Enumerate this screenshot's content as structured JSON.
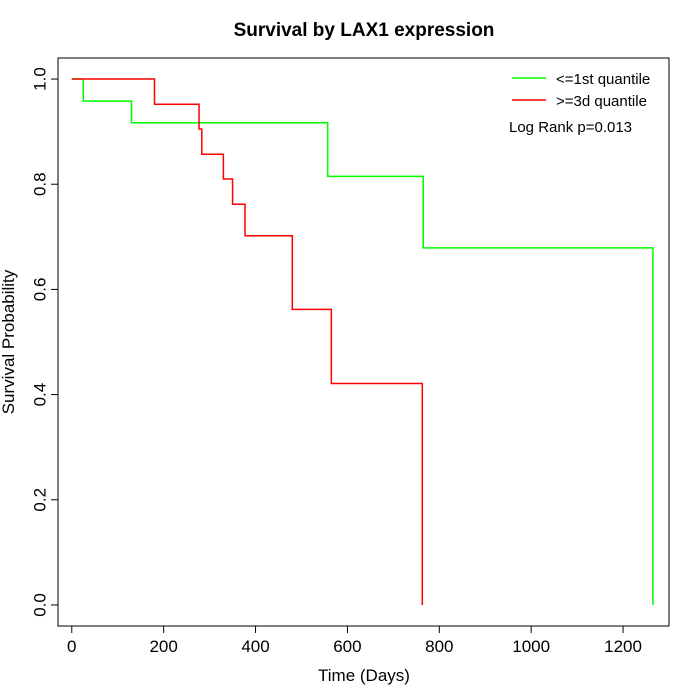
{
  "chart_data": {
    "type": "line",
    "title": "Survival by LAX1 expression",
    "xlabel": "Time (Days)",
    "ylabel": "Survival Probability",
    "xlim": [
      -30,
      1300
    ],
    "ylim": [
      -0.04,
      1.04
    ],
    "x_ticks": [
      0,
      200,
      400,
      600,
      800,
      1000,
      1200
    ],
    "y_ticks": [
      0.0,
      0.2,
      0.4,
      0.6,
      0.8,
      1.0
    ],
    "x_tick_labels": [
      "0",
      "200",
      "400",
      "600",
      "800",
      "1000",
      "1200"
    ],
    "y_tick_labels": [
      "0.0",
      "0.2",
      "0.4",
      "0.6",
      "0.8",
      "1.0"
    ],
    "grid": false,
    "legend_position": "top-right",
    "annotation": "Log Rank p=0.013",
    "series": [
      {
        "name": "<=1st quantile",
        "color": "#00ff00",
        "step": true,
        "x": [
          0,
          25,
          130,
          557,
          765,
          1265,
          1265
        ],
        "y": [
          1.0,
          0.958,
          0.917,
          0.815,
          0.679,
          0.679,
          0.0
        ]
      },
      {
        "name": ">=3d quantile",
        "color": "#ff0000",
        "step": true,
        "x": [
          0,
          180,
          277,
          283,
          330,
          350,
          377,
          480,
          565,
          763,
          763
        ],
        "y": [
          1.0,
          0.952,
          0.905,
          0.857,
          0.81,
          0.762,
          0.702,
          0.562,
          0.421,
          0.421,
          0.0
        ]
      }
    ]
  }
}
